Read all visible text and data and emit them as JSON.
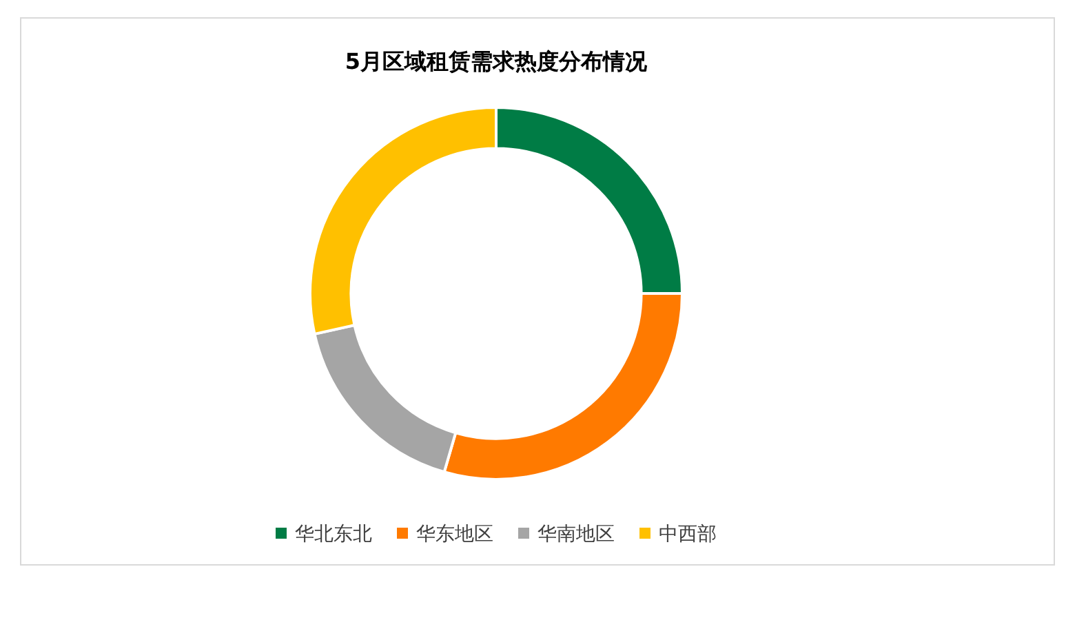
{
  "chart_data": {
    "type": "donut",
    "title": "5月区域租赁需求热度分布情况",
    "categories": [
      "华北东北",
      "华东地区",
      "华南地区",
      "中西部"
    ],
    "values": [
      25,
      29.5,
      17,
      28.5
    ],
    "colors": [
      "#007c45",
      "#ff7a00",
      "#a5a5a5",
      "#ffc000"
    ],
    "legend": "bottom"
  }
}
